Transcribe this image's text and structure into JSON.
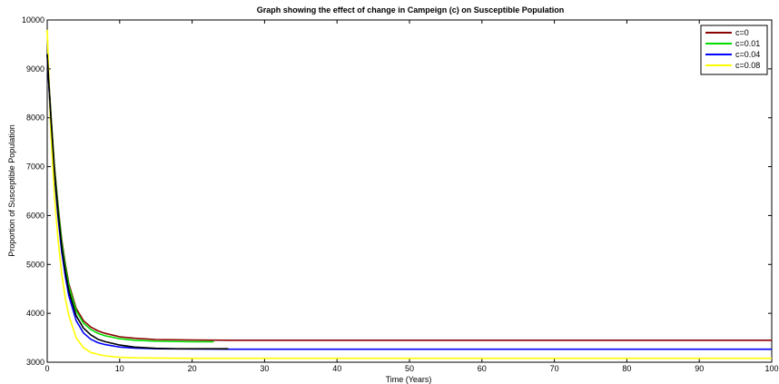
{
  "chart_data": {
    "type": "line",
    "title": "Graph showing the effect of change in Campeign (c) on Susceptible Population",
    "xlabel": "Time (Years)",
    "ylabel": "Proportion of Susceptible Population",
    "xlim": [
      0,
      100
    ],
    "ylim": [
      3000,
      10000
    ],
    "xticks": [
      0,
      10,
      20,
      30,
      40,
      50,
      60,
      70,
      80,
      90,
      100
    ],
    "yticks": [
      3000,
      4000,
      5000,
      6000,
      7000,
      8000,
      9000,
      10000
    ],
    "grid": false,
    "legend_position": "top-right",
    "series": [
      {
        "name": "c=0",
        "color": "#8b0000",
        "x": [
          0,
          0.5,
          1,
          1.5,
          2,
          2.5,
          3,
          4,
          5,
          6,
          7,
          8,
          10,
          12,
          15,
          20,
          25,
          30,
          40,
          50,
          60,
          70,
          80,
          90,
          100
        ],
        "y": [
          9300,
          8100,
          7000,
          6200,
          5500,
          5000,
          4600,
          4100,
          3850,
          3720,
          3640,
          3590,
          3520,
          3490,
          3465,
          3455,
          3450,
          3450,
          3450,
          3450,
          3450,
          3450,
          3450,
          3450,
          3450
        ]
      },
      {
        "name": "c=0.01",
        "color": "#00dd00",
        "x": [
          0,
          0.5,
          1,
          1.5,
          2,
          2.5,
          3,
          4,
          5,
          6,
          7,
          8,
          10,
          12,
          15,
          20,
          23
        ],
        "y": [
          9300,
          8050,
          6950,
          6150,
          5450,
          4950,
          4550,
          4050,
          3800,
          3670,
          3590,
          3540,
          3480,
          3450,
          3430,
          3420,
          3420
        ]
      },
      {
        "name": "c=0.04",
        "color": "#0000ff",
        "x": [
          0,
          0.5,
          1,
          1.5,
          2,
          2.5,
          3,
          4,
          5,
          6,
          7,
          8,
          10,
          12,
          15,
          20,
          25,
          30,
          40,
          50,
          60,
          70,
          80,
          90,
          100
        ],
        "y": [
          9300,
          7900,
          6800,
          5950,
          5250,
          4750,
          4350,
          3850,
          3600,
          3470,
          3400,
          3360,
          3310,
          3290,
          3275,
          3270,
          3265,
          3265,
          3265,
          3265,
          3265,
          3265,
          3265,
          3265,
          3265
        ]
      },
      {
        "name": "c=0.08",
        "color": "#ffff00",
        "x": [
          0,
          0.5,
          1,
          1.5,
          2,
          2.5,
          3,
          4,
          5,
          6,
          7,
          8,
          10,
          12,
          15,
          20,
          25,
          30,
          40,
          50,
          60,
          70,
          80,
          90,
          100
        ],
        "y": [
          9800,
          7700,
          6400,
          5500,
          4800,
          4300,
          3950,
          3500,
          3300,
          3200,
          3160,
          3130,
          3100,
          3090,
          3085,
          3080,
          3080,
          3080,
          3080,
          3080,
          3080,
          3080,
          3080,
          3080,
          3080
        ]
      },
      {
        "name": "",
        "color": "#000000",
        "x": [
          0,
          0.5,
          1,
          1.5,
          2,
          2.5,
          3,
          4,
          5,
          6,
          7,
          8,
          10,
          12,
          15,
          18,
          20,
          25
        ],
        "y": [
          9300,
          8000,
          6900,
          6050,
          5350,
          4850,
          4450,
          3950,
          3700,
          3560,
          3470,
          3420,
          3350,
          3310,
          3285,
          3275,
          3275,
          3275
        ]
      }
    ]
  }
}
